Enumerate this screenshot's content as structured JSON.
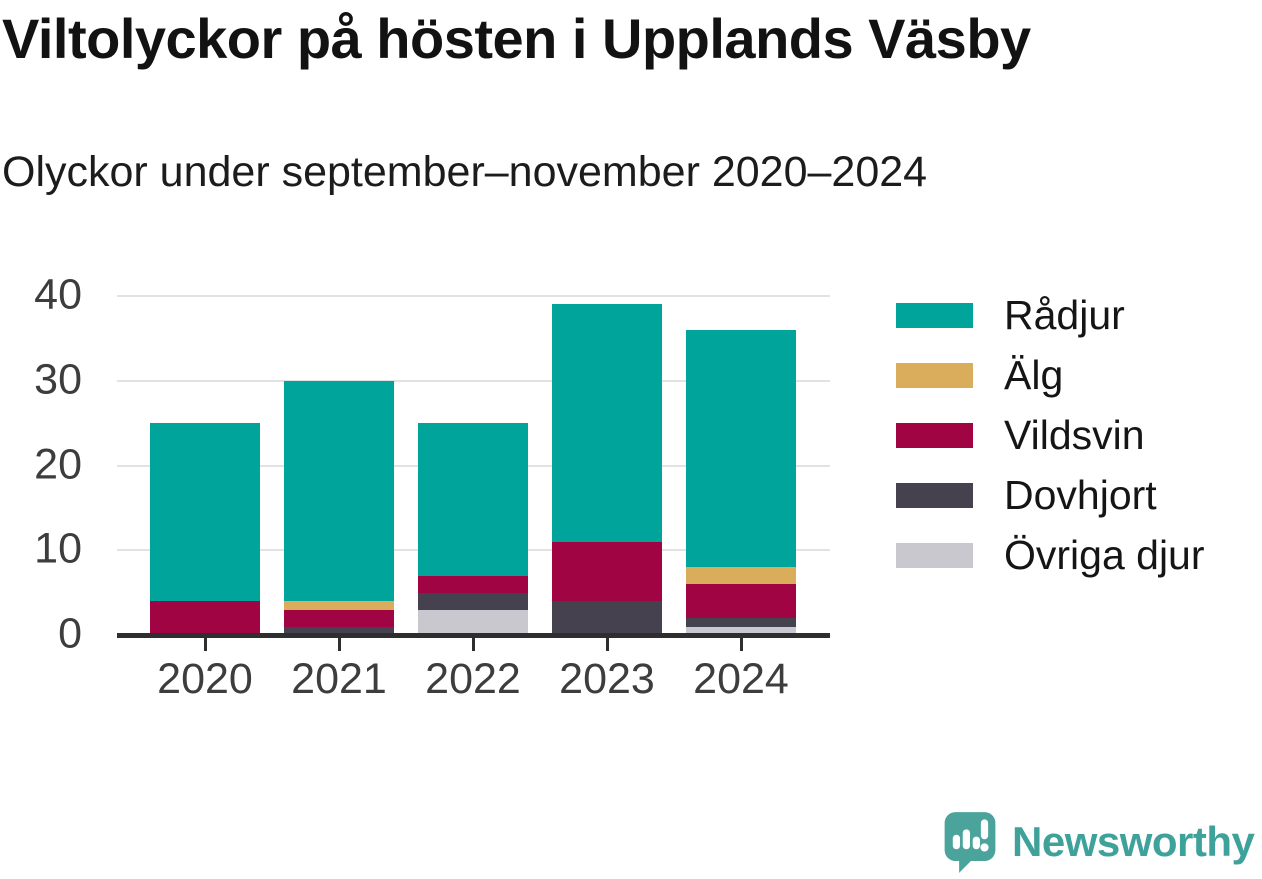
{
  "header": {
    "title": "Viltolyckor på hösten i Upplands Väsby",
    "subtitle": "Olyckor under september–november 2020–2024"
  },
  "chart_data": {
    "type": "bar",
    "stacked": true,
    "title": "Viltolyckor på hösten i Upplands Väsby",
    "subtitle": "Olyckor under september–november 2020–2024",
    "categories": [
      "2020",
      "2021",
      "2022",
      "2023",
      "2024"
    ],
    "series": [
      {
        "name": "Rådjur",
        "color": "#00A49B",
        "values": [
          21,
          26,
          18,
          28,
          28
        ]
      },
      {
        "name": "Älg",
        "color": "#D9AD5C",
        "values": [
          0,
          1,
          0,
          0,
          2
        ]
      },
      {
        "name": "Vildsvin",
        "color": "#A00443",
        "values": [
          4,
          2,
          2,
          7,
          4
        ]
      },
      {
        "name": "Dovhjort",
        "color": "#45414E",
        "values": [
          0,
          1,
          2,
          4,
          1
        ]
      },
      {
        "name": "Övriga djur",
        "color": "#C9C8CF",
        "values": [
          0,
          0,
          3,
          0,
          1
        ]
      }
    ],
    "stack_order_bottom_to_top": [
      "Övriga djur",
      "Dovhjort",
      "Vildsvin",
      "Älg",
      "Rådjur"
    ],
    "totals": [
      25,
      30,
      25,
      39,
      36
    ],
    "xlabel": "",
    "ylabel": "",
    "ylim": [
      0,
      40
    ],
    "yticks": [
      0,
      10,
      20,
      30,
      40
    ],
    "ytick_labels": [
      "0",
      "10",
      "20",
      "30",
      "40"
    ],
    "grid": true,
    "legend_position": "right",
    "colors": {
      "gridline": "#E2E2E2",
      "axis": "#2E2E2E",
      "tick_label": "#3D3D3D"
    }
  },
  "branding": {
    "logo_text": "Newsworthy",
    "logo_icon": "newsworthy-speech-bubble-chart-icon",
    "logo_color": "#3FA29A",
    "logo_icon_color": "#4BA49C"
  }
}
